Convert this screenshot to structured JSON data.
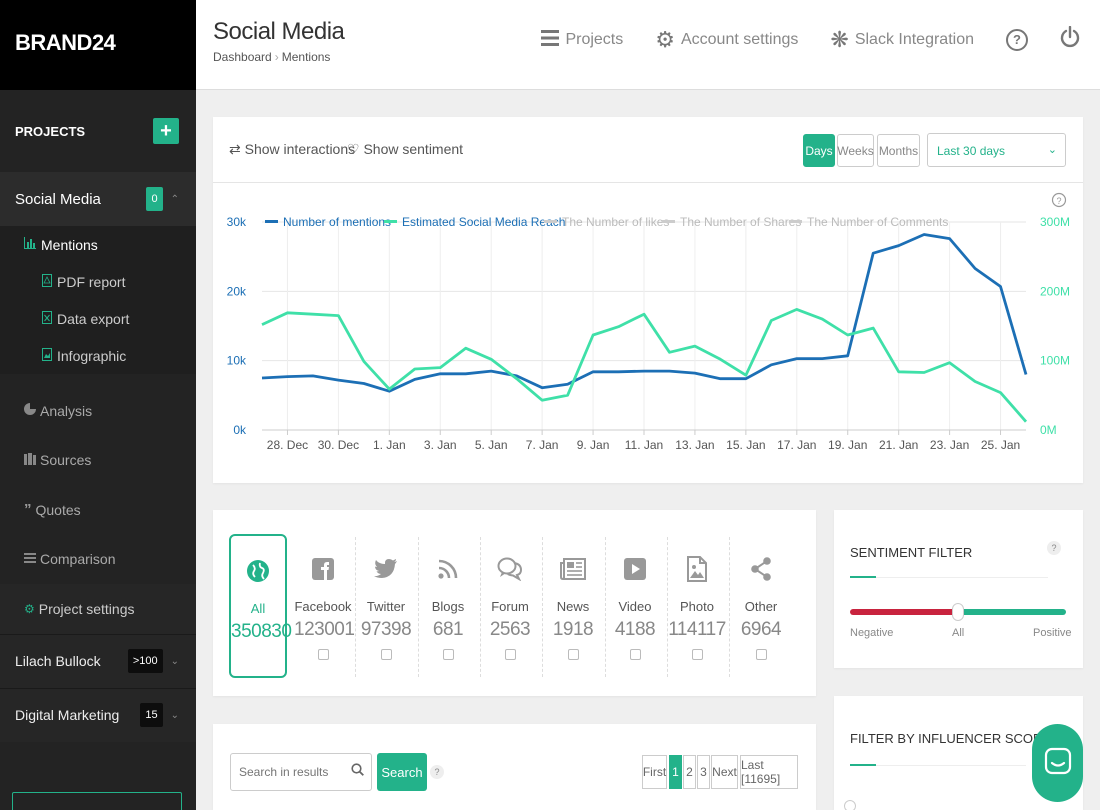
{
  "brand": "BRAND24",
  "sidebar": {
    "projects_label": "PROJECTS",
    "add_icon": "+",
    "active_project": {
      "name": "Social Media",
      "badge": "0"
    },
    "sub_items": [
      {
        "label": "Mentions",
        "icon": "bar-chart-icon"
      },
      {
        "label": "PDF report",
        "icon": "pdf-icon"
      },
      {
        "label": "Data export",
        "icon": "excel-icon"
      },
      {
        "label": "Infographic",
        "icon": "image-icon"
      }
    ],
    "menu": [
      {
        "label": "Analysis",
        "icon": "pie-chart-icon"
      },
      {
        "label": "Sources",
        "icon": "sources-icon"
      },
      {
        "label": "Quotes",
        "icon": "quote-icon"
      },
      {
        "label": "Comparison",
        "icon": "list-icon"
      },
      {
        "label": "Project settings",
        "icon": "gears-icon"
      }
    ],
    "other_projects": [
      {
        "name": "Lilach Bullock",
        "badge": ">100"
      },
      {
        "name": "Digital Marketing",
        "badge": "15"
      }
    ]
  },
  "header": {
    "title": "Social Media",
    "breadcrumb": [
      "Dashboard",
      "Mentions"
    ],
    "nav": [
      {
        "label": "Projects",
        "icon": "menu-icon"
      },
      {
        "label": "Account settings",
        "icon": "gear-icon"
      },
      {
        "label": "Slack Integration",
        "icon": "slack-icon"
      }
    ],
    "help_icon": "?"
  },
  "chart_controls": {
    "show_interactions": "Show interactions",
    "show_sentiment": "Show sentiment",
    "periods": [
      "Days",
      "Weeks",
      "Months"
    ],
    "active_period": "Days",
    "date_range": "Last 30 days"
  },
  "chart_data": {
    "type": "line",
    "legend": [
      {
        "name": "Number of mentions",
        "color": "#1c6fb5",
        "active": true
      },
      {
        "name": "Estimated Social Media Reach",
        "color": "#3fe0a8",
        "active": true
      },
      {
        "name": "The Number of likes",
        "color": "#cccccc",
        "active": false
      },
      {
        "name": "The Number of Shares",
        "color": "#cccccc",
        "active": false
      },
      {
        "name": "The Number of Comments",
        "color": "#cccccc",
        "active": false
      }
    ],
    "x_ticks": [
      "28. Dec",
      "30. Dec",
      "1. Jan",
      "3. Jan",
      "5. Jan",
      "7. Jan",
      "9. Jan",
      "11. Jan",
      "13. Jan",
      "15. Jan",
      "17. Jan",
      "19. Jan",
      "21. Jan",
      "23. Jan",
      "25. Jan"
    ],
    "y_left_ticks": [
      "0k",
      "10k",
      "20k",
      "30k"
    ],
    "y_left_range": [
      0,
      30000
    ],
    "y_right_ticks": [
      "0M",
      "100M",
      "200M",
      "300M"
    ],
    "y_right_range": [
      0,
      300000000
    ],
    "series": [
      {
        "name": "Number of mentions",
        "axis": "left",
        "color": "#1c6fb5",
        "values": [
          7500,
          7700,
          7800,
          7200,
          6700,
          5600,
          7300,
          8100,
          8100,
          8500,
          7800,
          6100,
          6600,
          8400,
          8400,
          8500,
          8500,
          8200,
          7400,
          7400,
          9400,
          10300,
          10300,
          10700,
          25500,
          26600,
          28200,
          27600,
          23300,
          20700,
          8000
        ]
      },
      {
        "name": "Estimated Social Media Reach",
        "axis": "right",
        "color": "#3fe0a8",
        "values": [
          152000000,
          169000000,
          167000000,
          165000000,
          99000000,
          59000000,
          88000000,
          90000000,
          118000000,
          102000000,
          74000000,
          43000000,
          50000000,
          137000000,
          149000000,
          167000000,
          112000000,
          121000000,
          102000000,
          79000000,
          158000000,
          174000000,
          160000000,
          137000000,
          147000000,
          84000000,
          83000000,
          97000000,
          70000000,
          54000000,
          12000000
        ]
      }
    ]
  },
  "sources": [
    {
      "label": "All",
      "count": "350830",
      "icon": "globe-icon",
      "active": true
    },
    {
      "label": "Facebook",
      "count": "123001",
      "icon": "facebook-icon"
    },
    {
      "label": "Twitter",
      "count": "97398",
      "icon": "twitter-icon"
    },
    {
      "label": "Blogs",
      "count": "681",
      "icon": "rss-icon"
    },
    {
      "label": "Forum",
      "count": "2563",
      "icon": "forum-icon"
    },
    {
      "label": "News",
      "count": "1918",
      "icon": "news-icon"
    },
    {
      "label": "Video",
      "count": "4188",
      "icon": "video-icon"
    },
    {
      "label": "Photo",
      "count": "114117",
      "icon": "photo-icon"
    },
    {
      "label": "Other",
      "count": "6964",
      "icon": "share-icon"
    }
  ],
  "sentiment": {
    "title": "SENTIMENT FILTER",
    "negative": "Negative",
    "all": "All",
    "positive": "Positive",
    "help": "?"
  },
  "influencer": {
    "title": "FILTER BY INFLUENCER SCORE"
  },
  "search": {
    "placeholder": "Search in results",
    "button": "Search",
    "help": "?"
  },
  "pagination": {
    "first": "First",
    "pages": [
      "1",
      "2",
      "3"
    ],
    "active": "1",
    "next": "Next",
    "last": "Last [11695]"
  }
}
